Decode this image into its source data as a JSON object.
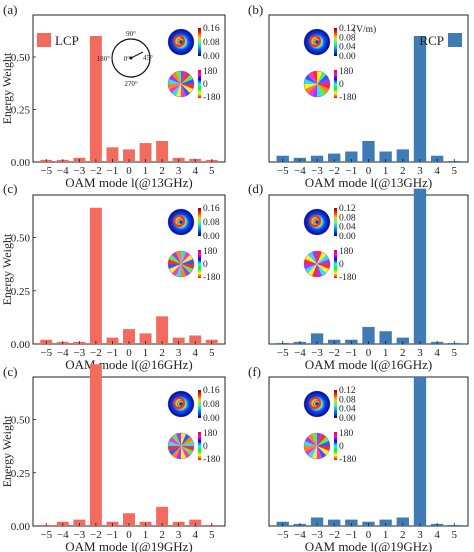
{
  "figure": {
    "ylabel": "Energy Weight",
    "colors": {
      "lcp": "#f26b5e",
      "rcp": "#3f7bb5",
      "axis": "#222222"
    },
    "inset": {
      "polar_labels": [
        "90°",
        "180°",
        "0°",
        "45°",
        "270°"
      ],
      "amp_ticks_left": [
        "0.16",
        "0.08",
        "0.00"
      ],
      "amp_ticks_right": [
        "0.12",
        "0.08",
        "0.04",
        "0.00"
      ],
      "amp_unit": "(V/m)",
      "phase_ticks": [
        "180",
        "0",
        "-180"
      ]
    }
  },
  "chart_data": [
    {
      "type": "bar",
      "panel": "(a)",
      "legend": "LCP",
      "xlabel": "OAM mode l(@13GHz)",
      "ylabel": "Energy Weight",
      "categories": [
        "−5",
        "−4",
        "−3",
        "−2",
        "−1",
        "0",
        "1",
        "2",
        "3",
        "4",
        "5"
      ],
      "values": [
        0.01,
        0.01,
        0.02,
        0.6,
        0.07,
        0.06,
        0.09,
        0.1,
        0.02,
        0.015,
        0.01
      ],
      "ylim": [
        0,
        0.7
      ],
      "yticks": [
        "0.00",
        "0.25",
        "0.50"
      ],
      "color": "#f26b5e"
    },
    {
      "type": "bar",
      "panel": "(b)",
      "legend": "RCP",
      "xlabel": "OAM mode l(@13GHz)",
      "ylabel": "",
      "categories": [
        "−5",
        "−4",
        "−3",
        "−2",
        "−1",
        "0",
        "1",
        "2",
        "3",
        "4",
        "5"
      ],
      "values": [
        0.03,
        0.02,
        0.03,
        0.04,
        0.05,
        0.1,
        0.05,
        0.06,
        0.6,
        0.03,
        0.005
      ],
      "ylim": [
        0,
        0.7
      ],
      "color": "#3f7bb5"
    },
    {
      "type": "bar",
      "panel": "(c)",
      "legend": "",
      "xlabel": "OAM mode l(@16GHz)",
      "ylabel": "Energy Weight",
      "categories": [
        "−5",
        "−4",
        "−3",
        "−2",
        "−1",
        "0",
        "1",
        "2",
        "3",
        "4",
        "5"
      ],
      "values": [
        0.02,
        0.01,
        0.01,
        0.64,
        0.03,
        0.07,
        0.05,
        0.13,
        0.03,
        0.04,
        0.02
      ],
      "ylim": [
        0,
        0.7
      ],
      "yticks": [
        "0.00",
        "0.25",
        "0.50"
      ],
      "color": "#f26b5e"
    },
    {
      "type": "bar",
      "panel": "(d)",
      "legend": "",
      "xlabel": "OAM mode l(@16GHz)",
      "ylabel": "",
      "categories": [
        "−5",
        "−4",
        "−3",
        "−2",
        "−1",
        "0",
        "1",
        "2",
        "3",
        "4",
        "5"
      ],
      "values": [
        0.005,
        0.01,
        0.05,
        0.02,
        0.02,
        0.08,
        0.06,
        0.03,
        0.73,
        0.01,
        0.005
      ],
      "ylim": [
        0,
        0.7
      ],
      "color": "#3f7bb5"
    },
    {
      "type": "bar",
      "panel": "(c)",
      "legend": "",
      "xlabel": "OAM mode l(@19GHz)",
      "ylabel": "Energy Weight",
      "categories": [
        "−5",
        "−4",
        "−3",
        "−2",
        "−1",
        "0",
        "1",
        "2",
        "3",
        "4",
        "5"
      ],
      "values": [
        0.005,
        0.02,
        0.03,
        0.76,
        0.02,
        0.06,
        0.02,
        0.09,
        0.02,
        0.03,
        0.005
      ],
      "ylim": [
        0,
        0.7
      ],
      "yticks": [
        "0.00",
        "0.25",
        "0.50"
      ],
      "color": "#f26b5e"
    },
    {
      "type": "bar",
      "panel": "(f)",
      "legend": "",
      "xlabel": "OAM mode l(@19GHz)",
      "ylabel": "",
      "categories": [
        "−5",
        "−4",
        "−3",
        "−2",
        "−1",
        "0",
        "1",
        "2",
        "3",
        "4",
        "5"
      ],
      "values": [
        0.02,
        0.01,
        0.04,
        0.03,
        0.03,
        0.02,
        0.03,
        0.04,
        0.7,
        0.01,
        0.005
      ],
      "ylim": [
        0,
        0.7
      ],
      "color": "#3f7bb5"
    }
  ]
}
